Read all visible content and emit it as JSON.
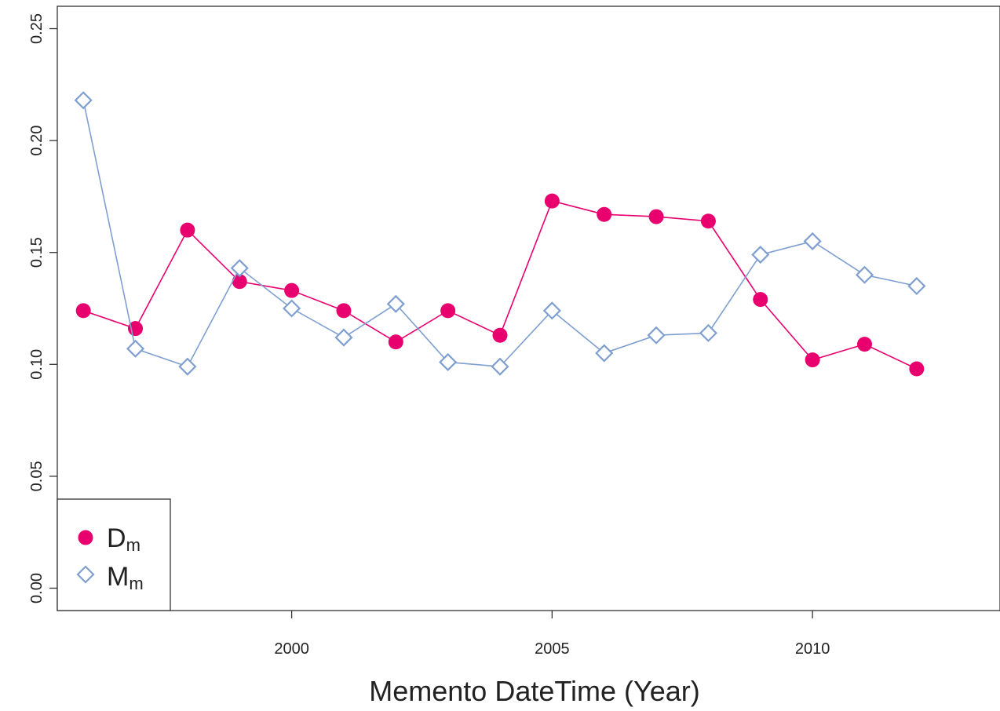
{
  "chart_data": {
    "type": "line",
    "xlabel": "Memento DateTime (Year)",
    "ylabel": "",
    "xlim": [
      1995.5,
      2013.6
    ],
    "ylim": [
      -0.01,
      0.26
    ],
    "x_ticks": [
      2000,
      2005,
      2010
    ],
    "x_tick_labels": [
      "2000",
      "2005",
      "2010"
    ],
    "y_ticks": [
      0.0,
      0.05,
      0.1,
      0.15,
      0.2,
      0.25
    ],
    "y_tick_labels": [
      "0.00",
      "0.05",
      "0.10",
      "0.15",
      "0.20",
      "0.25"
    ],
    "grid": false,
    "legend_position": "bottom-left",
    "x": [
      1996,
      1997,
      1998,
      1999,
      2000,
      2001,
      2002,
      2003,
      2004,
      2005,
      2006,
      2007,
      2008,
      2009,
      2010,
      2011,
      2012
    ],
    "series": [
      {
        "name": "D",
        "subscript": "m",
        "color": "#e8006e",
        "marker": "filled-circle",
        "values": [
          0.124,
          0.116,
          0.16,
          0.137,
          0.133,
          0.124,
          0.11,
          0.124,
          0.113,
          0.173,
          0.167,
          0.166,
          0.164,
          0.129,
          0.102,
          0.109,
          0.098
        ]
      },
      {
        "name": "M",
        "subscript": "m",
        "color": "#7f9fd0",
        "marker": "open-diamond",
        "values": [
          0.218,
          0.107,
          0.099,
          0.143,
          0.125,
          0.112,
          0.127,
          0.101,
          0.099,
          0.124,
          0.105,
          0.113,
          0.114,
          0.149,
          0.155,
          0.14,
          0.135
        ]
      }
    ]
  }
}
